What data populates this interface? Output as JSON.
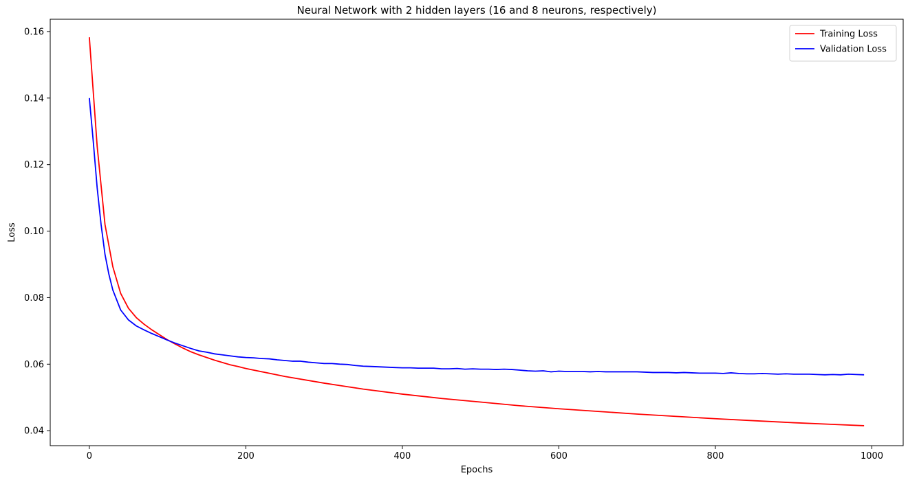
{
  "chart_data": {
    "type": "line",
    "title": "Neural Network with 2 hidden layers (16 and 8 neurons, respectively)",
    "xlabel": "Epochs",
    "ylabel": "Loss",
    "xlim": [
      -50,
      1040
    ],
    "ylim": [
      0.0355,
      0.1637
    ],
    "xticks": [
      0,
      200,
      400,
      600,
      800,
      1000
    ],
    "xtick_labels": [
      "0",
      "200",
      "400",
      "600",
      "800",
      "1000"
    ],
    "yticks": [
      0.04,
      0.06,
      0.08,
      0.1,
      0.12,
      0.14,
      0.16
    ],
    "ytick_labels": [
      "0.04",
      "0.06",
      "0.08",
      "0.10",
      "0.12",
      "0.14",
      "0.16"
    ],
    "grid": false,
    "legend_position": "top-right",
    "series": [
      {
        "name": "Training Loss",
        "color": "#ff0000",
        "x": [
          0,
          10,
          20,
          30,
          40,
          50,
          60,
          70,
          80,
          90,
          100,
          110,
          120,
          130,
          140,
          150,
          160,
          170,
          180,
          190,
          200,
          250,
          300,
          350,
          400,
          450,
          500,
          550,
          600,
          650,
          700,
          750,
          800,
          850,
          900,
          950,
          990
        ],
        "values": [
          0.1583,
          0.1255,
          0.102,
          0.0893,
          0.0813,
          0.0768,
          0.074,
          0.072,
          0.0703,
          0.0688,
          0.0673,
          0.066,
          0.0648,
          0.0637,
          0.0628,
          0.062,
          0.0612,
          0.0605,
          0.0598,
          0.0593,
          0.0587,
          0.0563,
          0.0543,
          0.0525,
          0.051,
          0.0497,
          0.0486,
          0.0475,
          0.0466,
          0.0458,
          0.045,
          0.0443,
          0.0436,
          0.043,
          0.0424,
          0.0419,
          0.0415
        ]
      },
      {
        "name": "Validation Loss",
        "color": "#0000ff",
        "x": [
          0,
          5,
          10,
          15,
          20,
          25,
          30,
          40,
          50,
          60,
          70,
          80,
          90,
          100,
          110,
          120,
          130,
          140,
          150,
          160,
          170,
          180,
          190,
          200,
          210,
          220,
          230,
          240,
          250,
          260,
          270,
          280,
          290,
          300,
          310,
          320,
          330,
          340,
          350,
          360,
          370,
          380,
          390,
          400,
          410,
          420,
          430,
          440,
          450,
          460,
          470,
          480,
          490,
          500,
          510,
          520,
          530,
          540,
          550,
          560,
          570,
          580,
          590,
          600,
          610,
          620,
          630,
          640,
          650,
          660,
          670,
          680,
          690,
          700,
          710,
          720,
          730,
          740,
          750,
          760,
          770,
          780,
          790,
          800,
          810,
          820,
          830,
          840,
          850,
          860,
          870,
          880,
          890,
          900,
          910,
          920,
          930,
          940,
          950,
          960,
          970,
          980,
          990
        ],
        "values": [
          0.14,
          0.127,
          0.113,
          0.102,
          0.093,
          0.087,
          0.0823,
          0.0763,
          0.0733,
          0.0715,
          0.0703,
          0.0692,
          0.0682,
          0.0672,
          0.0663,
          0.0655,
          0.0647,
          0.064,
          0.0636,
          0.0631,
          0.0628,
          0.0625,
          0.0622,
          0.062,
          0.0619,
          0.0617,
          0.0616,
          0.0613,
          0.0611,
          0.0609,
          0.0609,
          0.0606,
          0.0604,
          0.0602,
          0.0602,
          0.06,
          0.0599,
          0.0596,
          0.0594,
          0.0593,
          0.0592,
          0.0591,
          0.059,
          0.0589,
          0.0589,
          0.0588,
          0.0588,
          0.0588,
          0.0586,
          0.0586,
          0.0587,
          0.0585,
          0.0586,
          0.0585,
          0.0585,
          0.0584,
          0.0585,
          0.0584,
          0.0582,
          0.058,
          0.0579,
          0.058,
          0.0577,
          0.0579,
          0.0578,
          0.0578,
          0.0578,
          0.0577,
          0.0578,
          0.0577,
          0.0577,
          0.0577,
          0.0577,
          0.0577,
          0.0576,
          0.0575,
          0.0575,
          0.0575,
          0.0574,
          0.0575,
          0.0574,
          0.0573,
          0.0573,
          0.0573,
          0.0572,
          0.0574,
          0.0572,
          0.0571,
          0.0571,
          0.0572,
          0.0571,
          0.057,
          0.0571,
          0.057,
          0.057,
          0.057,
          0.0569,
          0.0568,
          0.0569,
          0.0568,
          0.057,
          0.0569,
          0.0568
        ]
      }
    ]
  }
}
